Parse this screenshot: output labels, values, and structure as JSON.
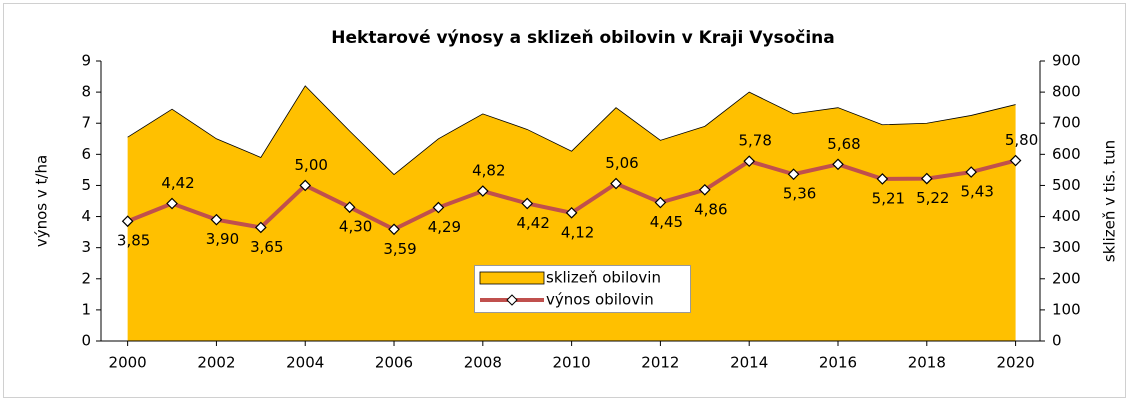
{
  "chart_data": {
    "type": "line-area",
    "title": "Hektarové výnosy a sklizeň obilovin v Kraji Vysočina",
    "y_label": "výnos v t/ha",
    "y2_label": "sklizeň v tis. tun",
    "x": [
      2000,
      2001,
      2002,
      2003,
      2004,
      2005,
      2006,
      2007,
      2008,
      2009,
      2010,
      2011,
      2012,
      2013,
      2014,
      2015,
      2016,
      2017,
      2018,
      2019,
      2020
    ],
    "xlim": [
      1999.4,
      2020.55
    ],
    "xticks": [
      2000,
      2002,
      2004,
      2006,
      2008,
      2010,
      2012,
      2014,
      2016,
      2018,
      2020
    ],
    "ylim": [
      0,
      9
    ],
    "yticks": [
      0,
      1,
      2,
      3,
      4,
      5,
      6,
      7,
      8,
      9
    ],
    "y2lim": [
      0,
      900
    ],
    "y2ticks": [
      0,
      100,
      200,
      300,
      400,
      500,
      600,
      700,
      800,
      900
    ],
    "legend": "center",
    "series": [
      {
        "name": "sklizeň obilovin",
        "kind": "area",
        "axis": "y2",
        "color": "#ffc000",
        "values": [
          655,
          745,
          650,
          590,
          820,
          675,
          535,
          650,
          730,
          680,
          610,
          750,
          645,
          690,
          800,
          730,
          750,
          695,
          700,
          725,
          760
        ]
      },
      {
        "name": "výnos obilovin",
        "kind": "line",
        "color": "#c0504d",
        "values": [
          3.85,
          4.42,
          3.9,
          3.65,
          5.0,
          4.3,
          3.59,
          4.29,
          4.82,
          4.42,
          4.12,
          5.06,
          4.45,
          4.86,
          5.78,
          5.36,
          5.68,
          5.21,
          5.22,
          5.43,
          5.8
        ],
        "value_labels": [
          "3,85",
          "4,42",
          "3,90",
          "3,65",
          "5,00",
          "4,30",
          "3,59",
          "4,29",
          "4,82",
          "4,42",
          "4,12",
          "5,06",
          "4,45",
          "4,86",
          "5,78",
          "5,36",
          "5,68",
          "5,21",
          "5,22",
          "5,43",
          "5,80"
        ]
      }
    ]
  }
}
